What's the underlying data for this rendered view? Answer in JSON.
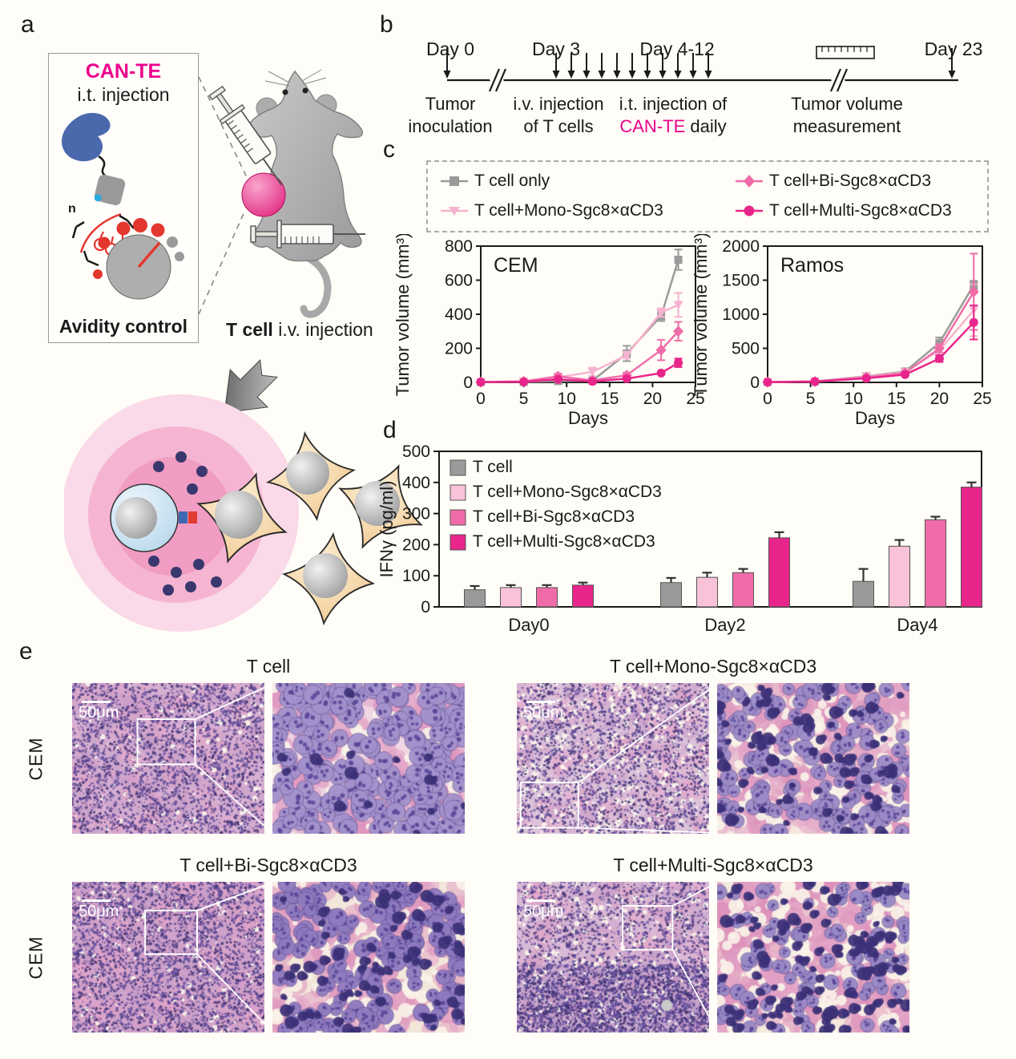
{
  "labels": {
    "a": "a",
    "b": "b",
    "c": "c",
    "d": "d",
    "e": "e"
  },
  "panel_a": {
    "box_title": "CAN-TE",
    "box_subtitle": "i.t. injection",
    "box_footer": "Avidity control",
    "tcell_label": "T cell",
    "iv_label": "i.v. injection",
    "accent_color": "#EC008C"
  },
  "panel_b": {
    "day0": {
      "label": "Day 0",
      "caption_line1": "Tumor",
      "caption_line2": "inoculation"
    },
    "day3": {
      "label": "Day 3",
      "caption_line1": "i.v. injection",
      "caption_line2": "of T cells"
    },
    "day412": {
      "label": "Day 4-12",
      "caption_line1": "i.t. injection of",
      "highlight": "CAN-TE",
      "caption_rest": "daily"
    },
    "measure": {
      "caption_line1": "Tumor volume",
      "caption_line2": "measurement"
    },
    "day23": {
      "label": "Day 23"
    }
  },
  "chart_data": [
    {
      "type": "line",
      "title": "CEM",
      "xlabel": "Days",
      "ylabel": "Tumor volume (mm³)",
      "xlim": [
        0,
        25
      ],
      "ylim": [
        0,
        800
      ],
      "xticks": [
        0,
        5,
        10,
        15,
        20,
        25
      ],
      "yticks": [
        0,
        200,
        400,
        600,
        800
      ],
      "x": [
        0,
        5,
        9,
        13,
        17,
        21,
        23
      ],
      "series": [
        {
          "name": "T cell only",
          "color": "#9A9A9A",
          "marker": "square",
          "values": [
            2,
            3,
            8,
            10,
            170,
            390,
            720
          ],
          "errors": [
            1,
            2,
            4,
            5,
            45,
            30,
            60
          ]
        },
        {
          "name": "T cell+Mono-Sgc8×αCD3",
          "color": "#F6B3D0",
          "marker": "triangle-down",
          "values": [
            2,
            6,
            30,
            62,
            160,
            410,
            455
          ],
          "errors": [
            1,
            3,
            14,
            25,
            20,
            25,
            70
          ]
        },
        {
          "name": "T cell+Bi-Sgc8×αCD3",
          "color": "#F06CA8",
          "marker": "diamond",
          "values": [
            2,
            6,
            36,
            12,
            42,
            190,
            300
          ],
          "errors": [
            1,
            3,
            15,
            8,
            15,
            60,
            55
          ]
        },
        {
          "name": "T cell+Multi-Sgc8×αCD3",
          "color": "#E8258B",
          "marker": "circle",
          "values": [
            2,
            3,
            18,
            6,
            22,
            55,
            115
          ],
          "errors": [
            1,
            2,
            8,
            4,
            10,
            14,
            25
          ]
        }
      ]
    },
    {
      "type": "line",
      "title": "Ramos",
      "xlabel": "Days",
      "ylabel": "Tumor volume (mm³)",
      "xlim": [
        0,
        25
      ],
      "ylim": [
        0,
        2000
      ],
      "xticks": [
        0,
        5,
        10,
        15,
        20,
        25
      ],
      "yticks": [
        0,
        500,
        1000,
        1500,
        2000
      ],
      "x": [
        0,
        5.5,
        11.5,
        16,
        20,
        24
      ],
      "series": [
        {
          "name": "T cell only",
          "color": "#9A9A9A",
          "marker": "square",
          "values": [
            5,
            15,
            90,
            160,
            580,
            1430
          ],
          "errors": [
            3,
            5,
            15,
            25,
            80,
            60
          ]
        },
        {
          "name": "T cell+Mono-Sgc8×αCD3",
          "color": "#F6B3D0",
          "marker": "triangle-down",
          "values": [
            5,
            12,
            85,
            150,
            470,
            1060
          ],
          "errors": [
            3,
            5,
            15,
            20,
            60,
            380
          ]
        },
        {
          "name": "T cell+Bi-Sgc8×αCD3",
          "color": "#F06CA8",
          "marker": "diamond",
          "values": [
            5,
            13,
            75,
            140,
            500,
            1330
          ],
          "errors": [
            3,
            5,
            12,
            20,
            60,
            560
          ]
        },
        {
          "name": "T cell+Multi-Sgc8×αCD3",
          "color": "#E8258B",
          "marker": "circle",
          "values": [
            5,
            12,
            60,
            115,
            350,
            880
          ],
          "errors": [
            3,
            5,
            10,
            15,
            50,
            250
          ]
        }
      ]
    },
    {
      "type": "bar",
      "categories": [
        "Day0",
        "Day2",
        "Day4"
      ],
      "ylabel": "IFNγ (pg/ml)",
      "ylim": [
        0,
        500
      ],
      "yticks": [
        0,
        100,
        200,
        300,
        400,
        500
      ],
      "series": [
        {
          "name": "T cell",
          "color": "#9A9A9A",
          "values": [
            55,
            78,
            82
          ],
          "errors": [
            12,
            15,
            40
          ]
        },
        {
          "name": "T cell+Mono-Sgc8×αCD3",
          "color": "#F8C3D9",
          "values": [
            62,
            95,
            195
          ],
          "errors": [
            8,
            15,
            20
          ]
        },
        {
          "name": "T cell+Bi-Sgc8×αCD3",
          "color": "#F06CA8",
          "values": [
            62,
            110,
            280
          ],
          "errors": [
            8,
            12,
            10
          ]
        },
        {
          "name": "T cell+Multi-Sgc8×αCD3",
          "color": "#E8258B",
          "values": [
            70,
            222,
            385
          ],
          "errors": [
            8,
            18,
            15
          ]
        }
      ]
    }
  ],
  "panel_e": {
    "row_label": "CEM",
    "scale_bar_label": "50μm",
    "palette": {
      "tissue": "#D6AFD2",
      "nucleus": "#5A4694",
      "pink": "#E6A7C9",
      "cream": "#F6EBDF"
    },
    "groups": [
      {
        "title": "T cell"
      },
      {
        "title": "T cell+Mono-Sgc8×αCD3"
      },
      {
        "title": "T cell+Bi-Sgc8×αCD3"
      },
      {
        "title": "T cell+Multi-Sgc8×αCD3"
      }
    ]
  }
}
